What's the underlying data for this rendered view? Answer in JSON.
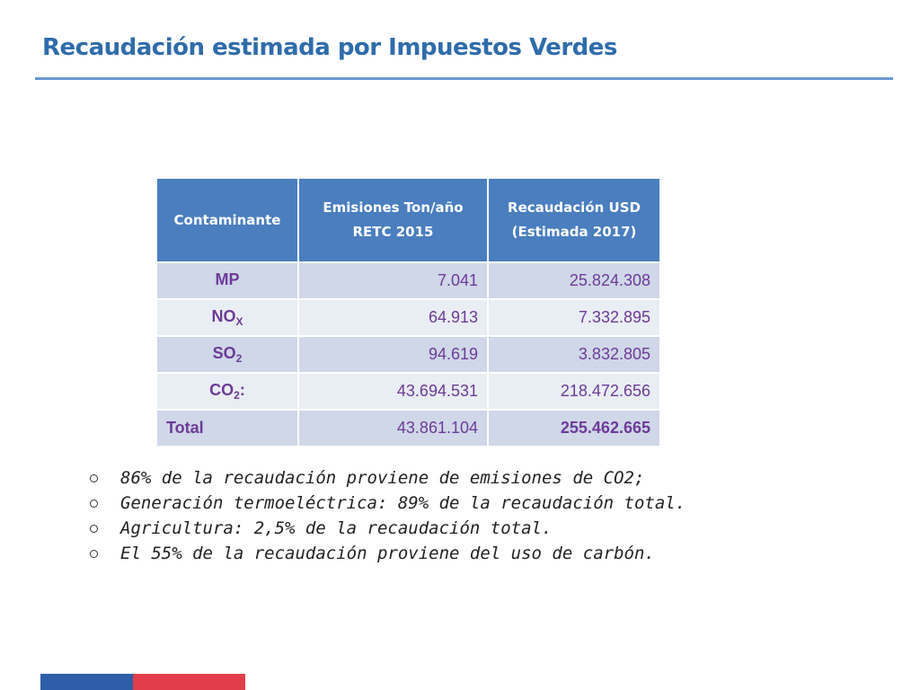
{
  "title": "Recaudación estimada por Impuestos Verdes",
  "table": {
    "headers": [
      "Contaminante",
      "Emisiones Ton/año RETC 2015",
      "Recaudación USD (Estimada 2017)"
    ],
    "rows": [
      {
        "pollutant": "MP",
        "pollutant_sub": "",
        "pollutant_suffix": "",
        "emissions": "7.041",
        "revenue": "25.824.308"
      },
      {
        "pollutant": "NO",
        "pollutant_sub": "X",
        "pollutant_suffix": "",
        "emissions": "64.913",
        "revenue": "7.332.895"
      },
      {
        "pollutant": "SO",
        "pollutant_sub": "2",
        "pollutant_suffix": "",
        "emissions": "94.619",
        "revenue": "3.832.805"
      },
      {
        "pollutant": "CO",
        "pollutant_sub": "2",
        "pollutant_suffix": ":",
        "emissions": "43.694.531",
        "revenue": "218.472.656"
      }
    ],
    "total": {
      "label": "Total",
      "emissions": "43.861.104",
      "revenue": "255.462.665"
    }
  },
  "bullets": [
    "86% de la recaudación proviene de emisiones de CO2;",
    "Generación termoeléctrica: 89% de la recaudación total.",
    "Agricultura: 2,5% de la recaudación total.",
    "El 55% de la recaudación proviene del uso de carbón."
  ],
  "colors": {
    "title": "#2f6cab",
    "header_bg": "#4a7ebf",
    "row_odd": "#cfd7e8",
    "row_even": "#e9edf4",
    "cell_text": "#6c3b97",
    "footer_blue": "#2e5ea8",
    "footer_red": "#e13d4a"
  }
}
